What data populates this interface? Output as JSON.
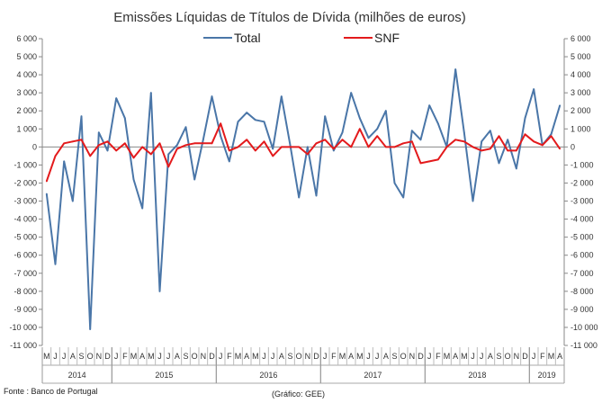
{
  "chart_data": {
    "type": "line",
    "title": "Emissões Líquidas de Títulos de Dívida (milhões de euros)",
    "ylim": [
      -11000,
      6000
    ],
    "y_ticks": [
      6000,
      5000,
      4000,
      3000,
      2000,
      1000,
      0,
      -1000,
      -2000,
      -3000,
      -4000,
      -5000,
      -6000,
      -7000,
      -8000,
      -9000,
      -10000,
      -11000
    ],
    "y_tick_labels_left": [
      "6 000",
      "5 000",
      "4 000",
      "3 000",
      "2 000",
      "1 000",
      "0",
      "-1 000",
      "-2 000",
      "-3 000",
      "-4 000",
      "-5 000",
      "-6 000",
      "-7 000",
      "-8 000",
      "-9 000",
      "-10 000",
      "-11 000"
    ],
    "y_tick_labels_right": [
      "6 000",
      "5 000",
      "4 000",
      "3 000",
      "2 000",
      "1 000",
      "0",
      "-1 000",
      "-2 000",
      "-3 000",
      "-4 000",
      "-5 000",
      "-6 000",
      "-7 000",
      "-8 000",
      "-9 000",
      "-10 000",
      "-11 000"
    ],
    "categories": [
      "M",
      "J",
      "J",
      "A",
      "S",
      "O",
      "N",
      "D",
      "J",
      "F",
      "M",
      "A",
      "M",
      "J",
      "J",
      "A",
      "S",
      "O",
      "N",
      "D",
      "J",
      "F",
      "M",
      "A",
      "M",
      "J",
      "J",
      "A",
      "S",
      "O",
      "N",
      "D",
      "J",
      "F",
      "M",
      "A",
      "M",
      "J",
      "J",
      "A",
      "S",
      "O",
      "N",
      "D",
      "J",
      "F",
      "M",
      "A",
      "M",
      "J",
      "J",
      "A",
      "S",
      "O",
      "N",
      "D",
      "J",
      "F",
      "M",
      "A"
    ],
    "years": [
      {
        "label": "2014",
        "start": 0,
        "count": 8
      },
      {
        "label": "2015",
        "start": 8,
        "count": 12
      },
      {
        "label": "2016",
        "start": 20,
        "count": 12
      },
      {
        "label": "2017",
        "start": 32,
        "count": 12
      },
      {
        "label": "2018",
        "start": 44,
        "count": 12
      },
      {
        "label": "2019",
        "start": 56,
        "count": 4
      }
    ],
    "series": [
      {
        "name": "Total",
        "color": "#4a76a8",
        "values": [
          -2600,
          -6500,
          -800,
          -3000,
          1700,
          -10100,
          800,
          -200,
          2700,
          1600,
          -1800,
          -3400,
          3000,
          -8000,
          -400,
          100,
          1100,
          -1800,
          400,
          2800,
          600,
          -800,
          1400,
          1900,
          1500,
          1400,
          -100,
          2800,
          100,
          -2800,
          0,
          -2700,
          1700,
          -200,
          800,
          3000,
          1600,
          500,
          1000,
          2000,
          -2000,
          -2800,
          900,
          400,
          2300,
          1300,
          0,
          4300,
          800,
          -3000,
          300,
          900,
          -900,
          400,
          -1200,
          1600,
          3200,
          100,
          700,
          2300
        ]
      },
      {
        "name": "SNF",
        "color": "#e31a1c",
        "values": [
          -1900,
          -500,
          200,
          300,
          400,
          -500,
          100,
          300,
          -200,
          200,
          -600,
          0,
          -400,
          200,
          -1100,
          -100,
          100,
          200,
          200,
          200,
          1300,
          -200,
          0,
          400,
          -200,
          300,
          -500,
          0,
          0,
          0,
          -400,
          200,
          400,
          -100,
          400,
          0,
          1000,
          0,
          600,
          0,
          0,
          200,
          300,
          -900,
          -800,
          -700,
          0,
          400,
          300,
          0,
          -200,
          -100,
          600,
          -200,
          -200,
          700,
          300,
          100,
          600,
          -100
        ]
      }
    ]
  },
  "footer": {
    "source": "Fonte : Banco de Portugal",
    "credit": "(Gráfico: GEE)"
  }
}
